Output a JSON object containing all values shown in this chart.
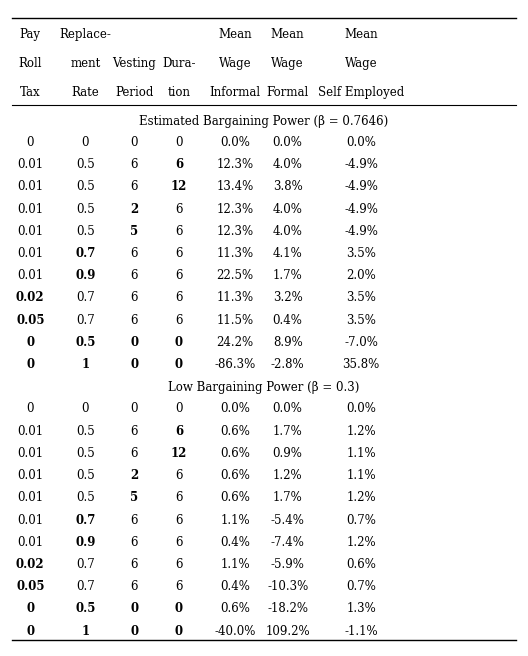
{
  "section1_label": "Estimated Bargaining Power (β = 0.7646)",
  "section2_label": "Low Bargaining Power (β = 0.3)",
  "header_line1": [
    "Pay",
    "Replace-",
    "",
    "",
    "Mean",
    "Mean",
    "Mean"
  ],
  "header_line2": [
    "Roll",
    "ment",
    "Vesting",
    "Dura-",
    "Wage",
    "Wage",
    "Wage"
  ],
  "header_line3": [
    "Tax",
    "Rate",
    "Period",
    "tion",
    "Informal",
    "Formal",
    "Self Employed"
  ],
  "rows_section1": [
    [
      "0",
      "0",
      "0",
      "0",
      "0.0%",
      "0.0%",
      "0.0%"
    ],
    [
      "0.01",
      "0.5",
      "6",
      "**6**",
      "12.3%",
      "4.0%",
      "-4.9%"
    ],
    [
      "0.01",
      "0.5",
      "6",
      "**12**",
      "13.4%",
      "3.8%",
      "-4.9%"
    ],
    [
      "0.01",
      "0.5",
      "**2**",
      "6",
      "12.3%",
      "4.0%",
      "-4.9%"
    ],
    [
      "0.01",
      "0.5",
      "**5**",
      "6",
      "12.3%",
      "4.0%",
      "-4.9%"
    ],
    [
      "0.01",
      "**0.7**",
      "6",
      "6",
      "11.3%",
      "4.1%",
      "3.5%"
    ],
    [
      "0.01",
      "**0.9**",
      "6",
      "6",
      "22.5%",
      "1.7%",
      "2.0%"
    ],
    [
      "**0.02**",
      "0.7",
      "6",
      "6",
      "11.3%",
      "3.2%",
      "3.5%"
    ],
    [
      "**0.05**",
      "0.7",
      "6",
      "6",
      "11.5%",
      "0.4%",
      "3.5%"
    ],
    [
      "**0**",
      "**0.5**",
      "**0**",
      "**0**",
      "24.2%",
      "8.9%",
      "-7.0%"
    ],
    [
      "**0**",
      "**1**",
      "**0**",
      "**0**",
      "-86.3%",
      "-2.8%",
      "35.8%"
    ]
  ],
  "rows_section2": [
    [
      "0",
      "0",
      "0",
      "0",
      "0.0%",
      "0.0%",
      "0.0%"
    ],
    [
      "0.01",
      "0.5",
      "6",
      "**6**",
      "0.6%",
      "1.7%",
      "1.2%"
    ],
    [
      "0.01",
      "0.5",
      "6",
      "**12**",
      "0.6%",
      "0.9%",
      "1.1%"
    ],
    [
      "0.01",
      "0.5",
      "**2**",
      "6",
      "0.6%",
      "1.2%",
      "1.1%"
    ],
    [
      "0.01",
      "0.5",
      "**5**",
      "6",
      "0.6%",
      "1.7%",
      "1.2%"
    ],
    [
      "0.01",
      "**0.7**",
      "6",
      "6",
      "1.1%",
      "-5.4%",
      "0.7%"
    ],
    [
      "0.01",
      "**0.9**",
      "6",
      "6",
      "0.4%",
      "-7.4%",
      "1.2%"
    ],
    [
      "**0.02**",
      "0.7",
      "6",
      "6",
      "1.1%",
      "-5.9%",
      "0.6%"
    ],
    [
      "**0.05**",
      "0.7",
      "6",
      "6",
      "0.4%",
      "-10.3%",
      "0.7%"
    ],
    [
      "**0**",
      "**0.5**",
      "**0**",
      "**0**",
      "0.6%",
      "-18.2%",
      "1.3%"
    ],
    [
      "**0**",
      "**1**",
      "**0**",
      "**0**",
      "-40.0%",
      "109.2%",
      "-1.1%"
    ]
  ],
  "bg_color": "white",
  "text_color": "black",
  "font_size": 8.5
}
